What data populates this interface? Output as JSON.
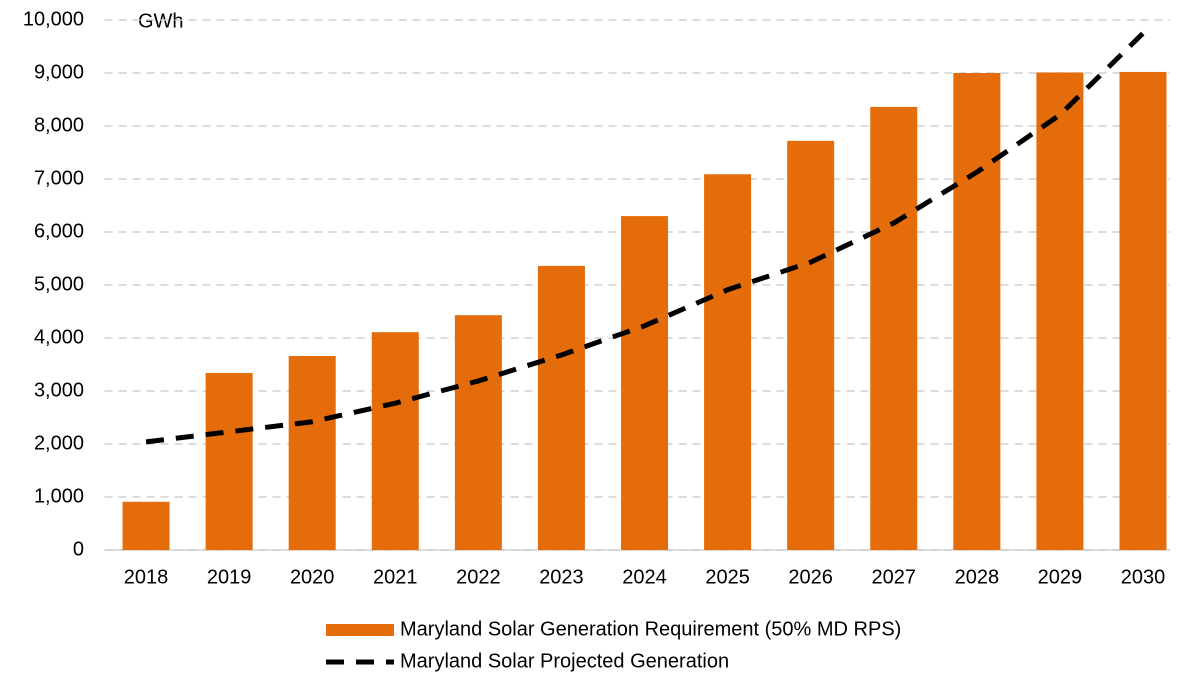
{
  "chart_data": {
    "type": "bar",
    "y_label": "GWh",
    "categories": [
      "2018",
      "2019",
      "2020",
      "2021",
      "2022",
      "2023",
      "2024",
      "2025",
      "2026",
      "2027",
      "2028",
      "2029",
      "2030"
    ],
    "series": [
      {
        "name": "Maryland Solar Generation Requirement (50% MD RPS)",
        "type": "bar",
        "color": "#e46c0a",
        "values": [
          910,
          3340,
          3660,
          4110,
          4430,
          5360,
          6300,
          7090,
          7720,
          8360,
          9000,
          9010,
          9020
        ]
      },
      {
        "name": "Maryland Solar Projected Generation",
        "type": "line",
        "color": "#000000",
        "values": [
          2040,
          2230,
          2420,
          2770,
          3190,
          3680,
          4230,
          4910,
          5430,
          6170,
          7130,
          8210,
          9750
        ]
      }
    ],
    "ylim": [
      0,
      10000
    ],
    "yticks": [
      0,
      {
        "value": 1000,
        "label": "1,000"
      },
      {
        "value": 2000,
        "label": "2,000"
      },
      {
        "value": 3000,
        "label": "3,000"
      },
      {
        "value": 4000,
        "label": "4,000"
      },
      {
        "value": 5000,
        "label": "5,000"
      },
      {
        "value": 6000,
        "label": "6,000"
      },
      {
        "value": 7000,
        "label": "7,000"
      },
      {
        "value": 8000,
        "label": "8,000"
      },
      {
        "value": 9000,
        "label": "9,000"
      },
      {
        "value": 10000,
        "label": "10,000"
      }
    ],
    "grid": true
  }
}
